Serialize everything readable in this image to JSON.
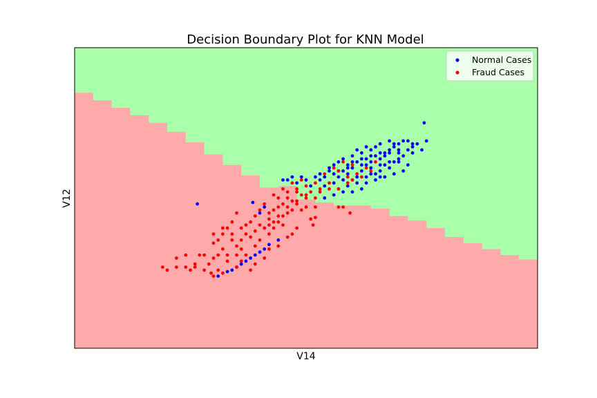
{
  "chart_data": {
    "type": "scatter",
    "title": "Decision Boundary Plot for KNN Model",
    "xlabel": "V14",
    "ylabel": "V12",
    "xlim": [
      0,
      100
    ],
    "ylim": [
      0,
      100
    ],
    "ticks_visible": false,
    "grid": false,
    "legend_position": "top-right",
    "region_colors": {
      "normal": "#aaffaa",
      "fraud": "#ffaaaa"
    },
    "decision_boundary": {
      "x": [
        0,
        4,
        8,
        12,
        16,
        20,
        24,
        28,
        32,
        36,
        40,
        44,
        48,
        52,
        56,
        60,
        64,
        68,
        72,
        76,
        80,
        84,
        88,
        92,
        96,
        100
      ],
      "y": [
        85,
        82.5,
        80,
        77.5,
        75,
        72,
        68.5,
        64.5,
        61,
        57.5,
        53.5,
        54,
        49.5,
        48.5,
        47.5,
        47.5,
        46.5,
        44,
        42.5,
        40,
        37,
        35,
        33,
        31,
        29.5,
        27.5
      ]
    },
    "series": [
      {
        "name": "Normal Cases",
        "color": "#0000ff",
        "points": [
          [
            54,
            57
          ],
          [
            56,
            58
          ],
          [
            58,
            59
          ],
          [
            60,
            60
          ],
          [
            62,
            61
          ],
          [
            64,
            62
          ],
          [
            66,
            63
          ],
          [
            67,
            64
          ],
          [
            68,
            65
          ],
          [
            70,
            66
          ],
          [
            58,
            63
          ],
          [
            60,
            64
          ],
          [
            62,
            65
          ],
          [
            64,
            66
          ],
          [
            65,
            67
          ],
          [
            66,
            68
          ],
          [
            68,
            69
          ],
          [
            69,
            68
          ],
          [
            56,
            61
          ],
          [
            55,
            60
          ],
          [
            53,
            58
          ],
          [
            52,
            57
          ],
          [
            59,
            61
          ],
          [
            61,
            62
          ],
          [
            63,
            63
          ],
          [
            65,
            64
          ],
          [
            67,
            65
          ],
          [
            69,
            67
          ],
          [
            70,
            68
          ],
          [
            71,
            69
          ],
          [
            72,
            69
          ],
          [
            73,
            68
          ],
          [
            61,
            66
          ],
          [
            63,
            67
          ],
          [
            57,
            62
          ],
          [
            59,
            60
          ],
          [
            62,
            59
          ],
          [
            64,
            58
          ],
          [
            66,
            59
          ],
          [
            68,
            60
          ],
          [
            70,
            62
          ],
          [
            60,
            56
          ],
          [
            63,
            55
          ],
          [
            65,
            56
          ],
          [
            67,
            57
          ],
          [
            69,
            58
          ],
          [
            71,
            59
          ],
          [
            72,
            61
          ],
          [
            66,
            61
          ],
          [
            64,
            60
          ],
          [
            58,
            56
          ],
          [
            56,
            55
          ],
          [
            54,
            54
          ],
          [
            57,
            57
          ],
          [
            61,
            58
          ],
          [
            71,
            64
          ],
          [
            72,
            66
          ],
          [
            73,
            67
          ],
          [
            63,
            61
          ],
          [
            60,
            62
          ],
          [
            55,
            59
          ],
          [
            53,
            56
          ],
          [
            51,
            54
          ],
          [
            50,
            56
          ],
          [
            49,
            57
          ],
          [
            48,
            55
          ],
          [
            47,
            57
          ],
          [
            46,
            56
          ],
          [
            45,
            56
          ],
          [
            62,
            63
          ],
          [
            64,
            64
          ],
          [
            66,
            65
          ],
          [
            68,
            66
          ],
          [
            70,
            65
          ],
          [
            57,
            59
          ],
          [
            59,
            58
          ],
          [
            61,
            57
          ],
          [
            63,
            57
          ],
          [
            65,
            58
          ],
          [
            67,
            61
          ],
          [
            69,
            62
          ],
          [
            75,
            66
          ],
          [
            73,
            65
          ],
          [
            70,
            63
          ],
          [
            68,
            62
          ],
          [
            66,
            57
          ],
          [
            62,
            53
          ],
          [
            60,
            52
          ],
          [
            58,
            52
          ],
          [
            56,
            51
          ],
          [
            54,
            50
          ],
          [
            57,
            53
          ],
          [
            59,
            54
          ],
          [
            61,
            55
          ],
          [
            74,
            68
          ],
          [
            76,
            69
          ],
          [
            75.5,
            75
          ],
          [
            26.5,
            48
          ],
          [
            38,
            30
          ],
          [
            36,
            28
          ],
          [
            34,
            26
          ],
          [
            33,
            25.5
          ],
          [
            35,
            27
          ],
          [
            37,
            29
          ],
          [
            39,
            31
          ],
          [
            41,
            33
          ],
          [
            42,
            34.5
          ],
          [
            40,
            32
          ],
          [
            44,
            36
          ],
          [
            31,
            24
          ],
          [
            38.5,
            48.5
          ],
          [
            41,
            47
          ],
          [
            40,
            45
          ]
        ]
      },
      {
        "name": "Fraud Cases",
        "color": "#ff0000",
        "points": [
          [
            50,
            54
          ],
          [
            52,
            55
          ],
          [
            48,
            52
          ],
          [
            47,
            49
          ],
          [
            46,
            50
          ],
          [
            45,
            48
          ],
          [
            44,
            47
          ],
          [
            43,
            46
          ],
          [
            42,
            45
          ],
          [
            44,
            50
          ],
          [
            46,
            52
          ],
          [
            48,
            53
          ],
          [
            49,
            51
          ],
          [
            51,
            52
          ],
          [
            53,
            53
          ],
          [
            55,
            55
          ],
          [
            54,
            58
          ],
          [
            56,
            60
          ],
          [
            58,
            62
          ],
          [
            60,
            61
          ],
          [
            57,
            59
          ],
          [
            59,
            57
          ],
          [
            49,
            56
          ],
          [
            47,
            55
          ],
          [
            45,
            53
          ],
          [
            43,
            51
          ],
          [
            41,
            48
          ],
          [
            40,
            46
          ],
          [
            39,
            44
          ],
          [
            38,
            42
          ],
          [
            37,
            41
          ],
          [
            36,
            40
          ],
          [
            35,
            45
          ],
          [
            34,
            42
          ],
          [
            33,
            40
          ],
          [
            32,
            38
          ],
          [
            31,
            36
          ],
          [
            30,
            35
          ],
          [
            34,
            36
          ],
          [
            35,
            34
          ],
          [
            36,
            33
          ],
          [
            33,
            31
          ],
          [
            32,
            33
          ],
          [
            31,
            31
          ],
          [
            30,
            30
          ],
          [
            28,
            31
          ],
          [
            29,
            28
          ],
          [
            27,
            31
          ],
          [
            26,
            28
          ],
          [
            24,
            31
          ],
          [
            22,
            30
          ],
          [
            28,
            26
          ],
          [
            33,
            29
          ],
          [
            35,
            27
          ],
          [
            37,
            31
          ],
          [
            39,
            34
          ],
          [
            40,
            36
          ],
          [
            42,
            38
          ],
          [
            43,
            40
          ],
          [
            44,
            42
          ],
          [
            45,
            44
          ],
          [
            46,
            45
          ],
          [
            47,
            46
          ],
          [
            48,
            48
          ],
          [
            50,
            50
          ],
          [
            52,
            50
          ],
          [
            53,
            52
          ],
          [
            55,
            53
          ],
          [
            57,
            53
          ],
          [
            59,
            55
          ],
          [
            61,
            58
          ],
          [
            63,
            60
          ],
          [
            65,
            62
          ],
          [
            62,
            57
          ],
          [
            60,
            56
          ],
          [
            64,
            59
          ],
          [
            38,
            37
          ],
          [
            41,
            40
          ],
          [
            36,
            36
          ],
          [
            37,
            38
          ],
          [
            39,
            39
          ],
          [
            42,
            43
          ],
          [
            44,
            44
          ],
          [
            46,
            47
          ],
          [
            48,
            49
          ],
          [
            50,
            51
          ],
          [
            34,
            38
          ],
          [
            32,
            40
          ],
          [
            40,
            41
          ],
          [
            42,
            41
          ],
          [
            43,
            42
          ],
          [
            45,
            41
          ],
          [
            30,
            38
          ],
          [
            35,
            31
          ],
          [
            36,
            29
          ],
          [
            25,
            26
          ],
          [
            26,
            27
          ],
          [
            24,
            27
          ],
          [
            22,
            27
          ],
          [
            20,
            26
          ],
          [
            19,
            27
          ],
          [
            32,
            25
          ],
          [
            31,
            26
          ],
          [
            30,
            24
          ],
          [
            29.5,
            25
          ],
          [
            38,
            26
          ],
          [
            39,
            28
          ],
          [
            41,
            30
          ],
          [
            42,
            33
          ],
          [
            44,
            34
          ],
          [
            46,
            37
          ],
          [
            47,
            38
          ],
          [
            48,
            40
          ],
          [
            51,
            43
          ],
          [
            52,
            43.5
          ],
          [
            51.5,
            41
          ],
          [
            58,
            47
          ],
          [
            59.5,
            45
          ],
          [
            57,
            47
          ],
          [
            52,
            47
          ],
          [
            50,
            47
          ],
          [
            49,
            46
          ]
        ]
      }
    ]
  }
}
